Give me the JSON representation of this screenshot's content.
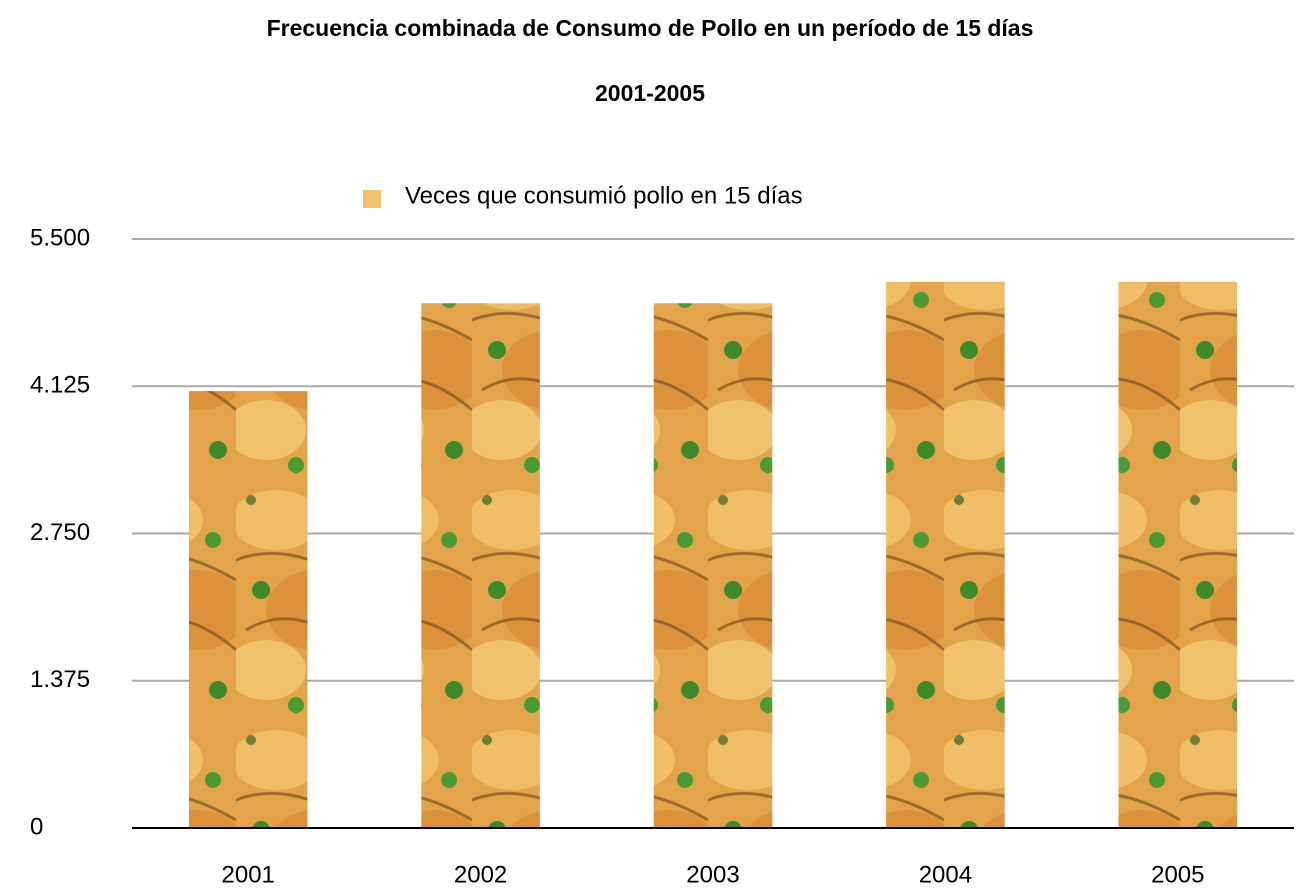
{
  "chart_data": {
    "type": "bar",
    "title": "Frecuencia combinada de Consumo de Pollo en un período de 15 días",
    "subtitle": "2001-2005",
    "categories": [
      "2001",
      "2002",
      "2003",
      "2004",
      "2005"
    ],
    "series": [
      {
        "name": "Veces que consumió pollo en 15 días",
        "color": "#e3a449",
        "values": [
          4.08,
          4.9,
          4.9,
          5.1,
          5.1
        ]
      }
    ],
    "ylim": [
      0,
      5.5
    ],
    "yticks": [
      {
        "value": 0,
        "label": "0"
      },
      {
        "value": 1.375,
        "label": "1.375"
      },
      {
        "value": 2.75,
        "label": "2.750"
      },
      {
        "value": 4.125,
        "label": "4.125"
      },
      {
        "value": 5.5,
        "label": "5.500"
      }
    ],
    "grid": true
  }
}
